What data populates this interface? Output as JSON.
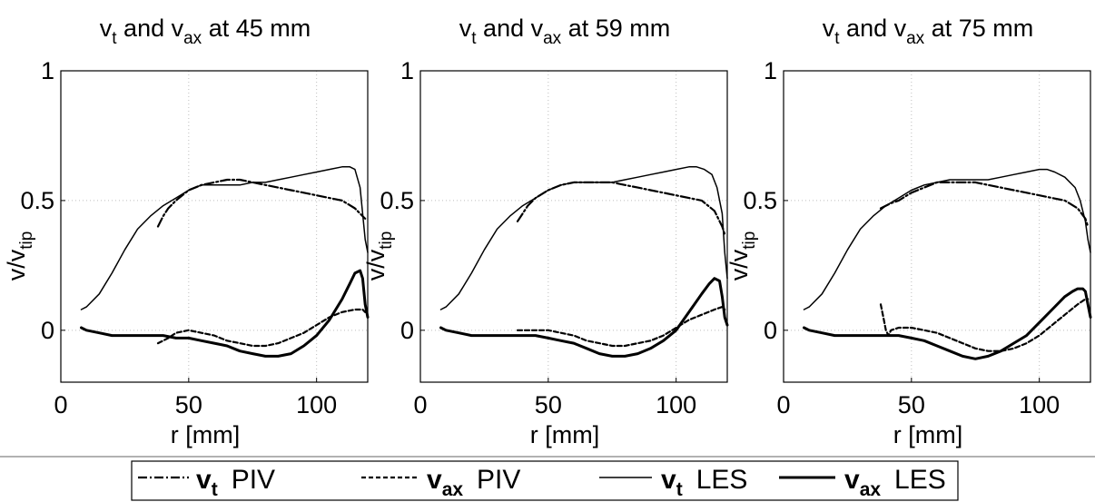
{
  "chart_data": [
    {
      "type": "line",
      "title": {
        "base": "v",
        "sub1": "t",
        "mid": " and v",
        "sub2": "ax",
        "tail": " at 45 mm"
      },
      "xlabel": "r [mm]",
      "ylabel": {
        "base": "v/v",
        "sub": "tip"
      },
      "xlim": [
        0,
        120
      ],
      "ylim": [
        -0.2,
        1
      ],
      "xticks": [
        0,
        50,
        100
      ],
      "yticks": [
        0,
        0.5,
        1
      ],
      "xtick_labels": [
        "0",
        "50",
        "100"
      ],
      "ytick_labels": [
        "0",
        "0.5",
        "1"
      ],
      "grid": true,
      "series": [
        {
          "key": "vt_piv",
          "x": [
            38,
            40,
            42,
            45,
            50,
            55,
            60,
            65,
            70,
            75,
            80,
            85,
            90,
            95,
            100,
            105,
            110,
            115,
            118,
            119
          ],
          "y": [
            0.4,
            0.44,
            0.47,
            0.5,
            0.54,
            0.56,
            0.57,
            0.58,
            0.58,
            0.57,
            0.56,
            0.55,
            0.54,
            0.53,
            0.52,
            0.51,
            0.5,
            0.47,
            0.44,
            0.43
          ]
        },
        {
          "key": "vax_piv",
          "x": [
            38,
            40,
            42,
            45,
            50,
            55,
            60,
            65,
            70,
            75,
            80,
            85,
            90,
            95,
            100,
            105,
            110,
            115,
            118,
            119
          ],
          "y": [
            -0.05,
            -0.04,
            -0.03,
            -0.01,
            0,
            -0.01,
            -0.02,
            -0.04,
            -0.05,
            -0.06,
            -0.06,
            -0.05,
            -0.03,
            -0.01,
            0.02,
            0.05,
            0.07,
            0.08,
            0.08,
            0.07
          ]
        },
        {
          "key": "vt_les",
          "x": [
            8,
            10,
            15,
            20,
            25,
            30,
            35,
            40,
            45,
            50,
            55,
            60,
            65,
            70,
            75,
            80,
            85,
            90,
            95,
            100,
            105,
            110,
            113,
            115,
            117,
            118,
            119,
            120
          ],
          "y": [
            0.08,
            0.09,
            0.14,
            0.22,
            0.31,
            0.39,
            0.44,
            0.48,
            0.51,
            0.54,
            0.56,
            0.56,
            0.56,
            0.56,
            0.57,
            0.57,
            0.58,
            0.59,
            0.6,
            0.61,
            0.62,
            0.63,
            0.63,
            0.62,
            0.55,
            0.45,
            0.35,
            0.3
          ]
        },
        {
          "key": "vax_les",
          "x": [
            8,
            10,
            15,
            20,
            25,
            30,
            35,
            40,
            45,
            50,
            55,
            60,
            65,
            70,
            75,
            80,
            85,
            90,
            95,
            100,
            105,
            110,
            113,
            115,
            117,
            118,
            119,
            120
          ],
          "y": [
            0.01,
            0,
            -0.01,
            -0.02,
            -0.02,
            -0.02,
            -0.02,
            -0.02,
            -0.03,
            -0.03,
            -0.04,
            -0.05,
            -0.06,
            -0.08,
            -0.09,
            -0.1,
            -0.1,
            -0.09,
            -0.06,
            -0.02,
            0.04,
            0.12,
            0.18,
            0.22,
            0.23,
            0.2,
            0.1,
            0.05
          ]
        }
      ]
    },
    {
      "type": "line",
      "title": {
        "base": "v",
        "sub1": "t",
        "mid": " and v",
        "sub2": "ax",
        "tail": " at 59 mm"
      },
      "xlabel": "r [mm]",
      "ylabel": {
        "base": "v/v",
        "sub": "tip"
      },
      "xlim": [
        0,
        120
      ],
      "ylim": [
        -0.2,
        1
      ],
      "xticks": [
        0,
        50,
        100
      ],
      "yticks": [
        0,
        0.5,
        1
      ],
      "xtick_labels": [
        "0",
        "50",
        "100"
      ],
      "ytick_labels": [
        "0",
        "0.5",
        "1"
      ],
      "grid": true,
      "series": [
        {
          "key": "vt_piv",
          "x": [
            38,
            40,
            42,
            45,
            50,
            55,
            60,
            65,
            70,
            75,
            80,
            85,
            90,
            95,
            100,
            105,
            110,
            115,
            118,
            119
          ],
          "y": [
            0.42,
            0.45,
            0.48,
            0.51,
            0.54,
            0.56,
            0.57,
            0.57,
            0.57,
            0.57,
            0.56,
            0.55,
            0.54,
            0.53,
            0.52,
            0.51,
            0.5,
            0.46,
            0.4,
            0.37
          ]
        },
        {
          "key": "vax_piv",
          "x": [
            38,
            40,
            42,
            45,
            50,
            55,
            60,
            65,
            70,
            75,
            80,
            85,
            90,
            95,
            100,
            105,
            110,
            115,
            118,
            119
          ],
          "y": [
            0,
            0,
            0,
            0,
            0,
            -0.01,
            -0.02,
            -0.04,
            -0.05,
            -0.06,
            -0.06,
            -0.05,
            -0.04,
            -0.02,
            0.01,
            0.04,
            0.06,
            0.08,
            0.09,
            0.08
          ]
        },
        {
          "key": "vt_les",
          "x": [
            8,
            10,
            15,
            20,
            25,
            30,
            35,
            40,
            45,
            50,
            55,
            60,
            65,
            70,
            75,
            80,
            85,
            90,
            95,
            100,
            105,
            108,
            111,
            114,
            116,
            118,
            119,
            120
          ],
          "y": [
            0.08,
            0.09,
            0.14,
            0.22,
            0.31,
            0.39,
            0.44,
            0.48,
            0.51,
            0.54,
            0.56,
            0.57,
            0.57,
            0.57,
            0.57,
            0.58,
            0.59,
            0.6,
            0.61,
            0.62,
            0.63,
            0.63,
            0.62,
            0.6,
            0.55,
            0.45,
            0.3,
            0.2
          ]
        },
        {
          "key": "vax_les",
          "x": [
            8,
            10,
            15,
            20,
            25,
            30,
            35,
            40,
            45,
            50,
            55,
            60,
            65,
            70,
            75,
            80,
            85,
            90,
            95,
            100,
            105,
            110,
            113,
            115,
            117,
            118,
            119,
            120
          ],
          "y": [
            0.01,
            0,
            -0.01,
            -0.02,
            -0.02,
            -0.02,
            -0.02,
            -0.02,
            -0.02,
            -0.03,
            -0.04,
            -0.05,
            -0.07,
            -0.09,
            -0.1,
            -0.1,
            -0.09,
            -0.07,
            -0.04,
            0,
            0.07,
            0.14,
            0.18,
            0.2,
            0.19,
            0.13,
            0.05,
            0.02
          ]
        }
      ]
    },
    {
      "type": "line",
      "title": {
        "base": "v",
        "sub1": "t",
        "mid": " and v",
        "sub2": "ax",
        "tail": " at 75 mm"
      },
      "xlabel": "r [mm]",
      "ylabel": {
        "base": "v/v",
        "sub": "tip"
      },
      "xlim": [
        0,
        120
      ],
      "ylim": [
        -0.2,
        1
      ],
      "xticks": [
        0,
        50,
        100
      ],
      "yticks": [
        0,
        0.5,
        1
      ],
      "xtick_labels": [
        "0",
        "50",
        "100"
      ],
      "ytick_labels": [
        "0",
        "0.5",
        "1"
      ],
      "grid": true,
      "series": [
        {
          "key": "vt_piv",
          "x": [
            38,
            40,
            42,
            45,
            50,
            55,
            60,
            65,
            70,
            75,
            80,
            85,
            90,
            95,
            100,
            105,
            110,
            115,
            118,
            119
          ],
          "y": [
            0.47,
            0.48,
            0.49,
            0.5,
            0.53,
            0.55,
            0.57,
            0.57,
            0.57,
            0.57,
            0.56,
            0.55,
            0.54,
            0.53,
            0.52,
            0.51,
            0.5,
            0.47,
            0.43,
            0.4
          ]
        },
        {
          "key": "vax_piv",
          "x": [
            38,
            39,
            40,
            41,
            42,
            45,
            50,
            55,
            60,
            65,
            70,
            75,
            80,
            85,
            90,
            95,
            100,
            105,
            110,
            115,
            118,
            119
          ],
          "y": [
            0.1,
            0.05,
            0,
            -0.02,
            0,
            0.01,
            0.01,
            0,
            -0.01,
            -0.03,
            -0.05,
            -0.07,
            -0.08,
            -0.08,
            -0.07,
            -0.05,
            -0.02,
            0.02,
            0.06,
            0.1,
            0.12,
            0.12
          ]
        },
        {
          "key": "vt_les",
          "x": [
            8,
            10,
            15,
            20,
            25,
            30,
            35,
            40,
            45,
            50,
            55,
            60,
            65,
            70,
            75,
            80,
            85,
            90,
            95,
            100,
            103,
            106,
            110,
            114,
            116,
            118,
            119,
            120
          ],
          "y": [
            0.08,
            0.09,
            0.14,
            0.22,
            0.31,
            0.39,
            0.44,
            0.48,
            0.51,
            0.54,
            0.56,
            0.57,
            0.58,
            0.58,
            0.58,
            0.58,
            0.59,
            0.6,
            0.61,
            0.62,
            0.62,
            0.61,
            0.59,
            0.55,
            0.5,
            0.42,
            0.35,
            0.3
          ]
        },
        {
          "key": "vax_les",
          "x": [
            8,
            10,
            15,
            20,
            25,
            30,
            35,
            40,
            45,
            50,
            55,
            60,
            65,
            70,
            75,
            80,
            85,
            90,
            95,
            100,
            105,
            110,
            113,
            115,
            117,
            118,
            119,
            120
          ],
          "y": [
            0.01,
            0,
            -0.01,
            -0.02,
            -0.02,
            -0.02,
            -0.02,
            -0.02,
            -0.02,
            -0.03,
            -0.04,
            -0.06,
            -0.08,
            -0.1,
            -0.11,
            -0.1,
            -0.08,
            -0.05,
            -0.02,
            0.03,
            0.08,
            0.13,
            0.15,
            0.16,
            0.16,
            0.15,
            0.1,
            0.05
          ]
        }
      ]
    }
  ],
  "legend": {
    "placement": "bottom",
    "entries": [
      {
        "key": "vt_piv",
        "style": "dashdot",
        "base": "v",
        "sub": "t",
        "label": "PIV"
      },
      {
        "key": "vax_piv",
        "style": "dashed",
        "base": "v",
        "sub": "ax",
        "label": "PIV"
      },
      {
        "key": "vt_les",
        "style": "thin",
        "base": "v",
        "sub": "t",
        "label": "LES"
      },
      {
        "key": "vax_les",
        "style": "thick",
        "base": "v",
        "sub": "ax",
        "label": "LES"
      }
    ]
  }
}
